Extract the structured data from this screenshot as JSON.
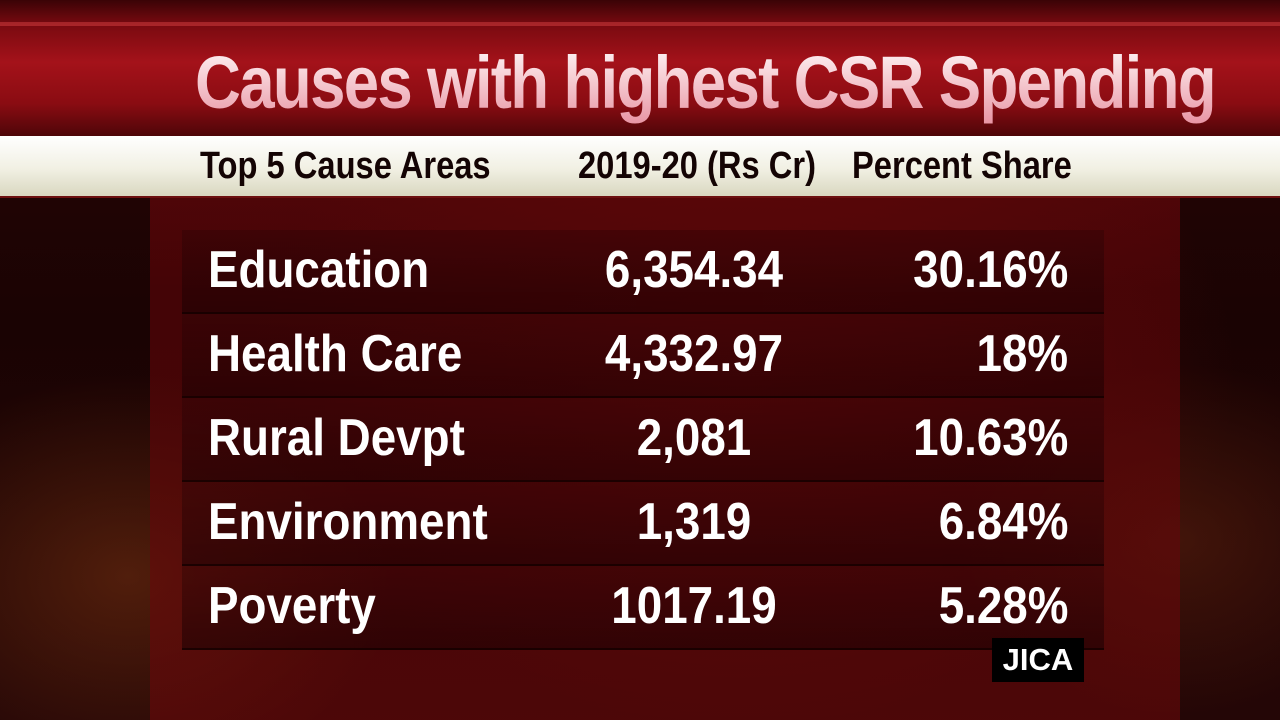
{
  "title": "Causes with highest CSR Spending",
  "chart_data": {
    "type": "table",
    "title": "Causes with highest CSR Spending",
    "columns": [
      "Top 5 Cause Areas",
      "2019-20 (Rs Cr)",
      "Percent Share"
    ],
    "rows": [
      {
        "area": "Education",
        "amount": "6,354.34",
        "share": "30.16%"
      },
      {
        "area": "Health Care",
        "amount": "4,332.97",
        "share": "18%"
      },
      {
        "area": "Rural Devpt",
        "amount": "2,081",
        "share": "10.63%"
      },
      {
        "area": "Environment",
        "amount": "1,319",
        "share": "6.84%"
      },
      {
        "area": "Poverty",
        "amount": "1017.19",
        "share": "5.28%"
      }
    ]
  },
  "source_badge": "JICA",
  "colors": {
    "title_band": "#a4121a",
    "header_band": "#f1f0e3",
    "text": "#ffffff"
  }
}
